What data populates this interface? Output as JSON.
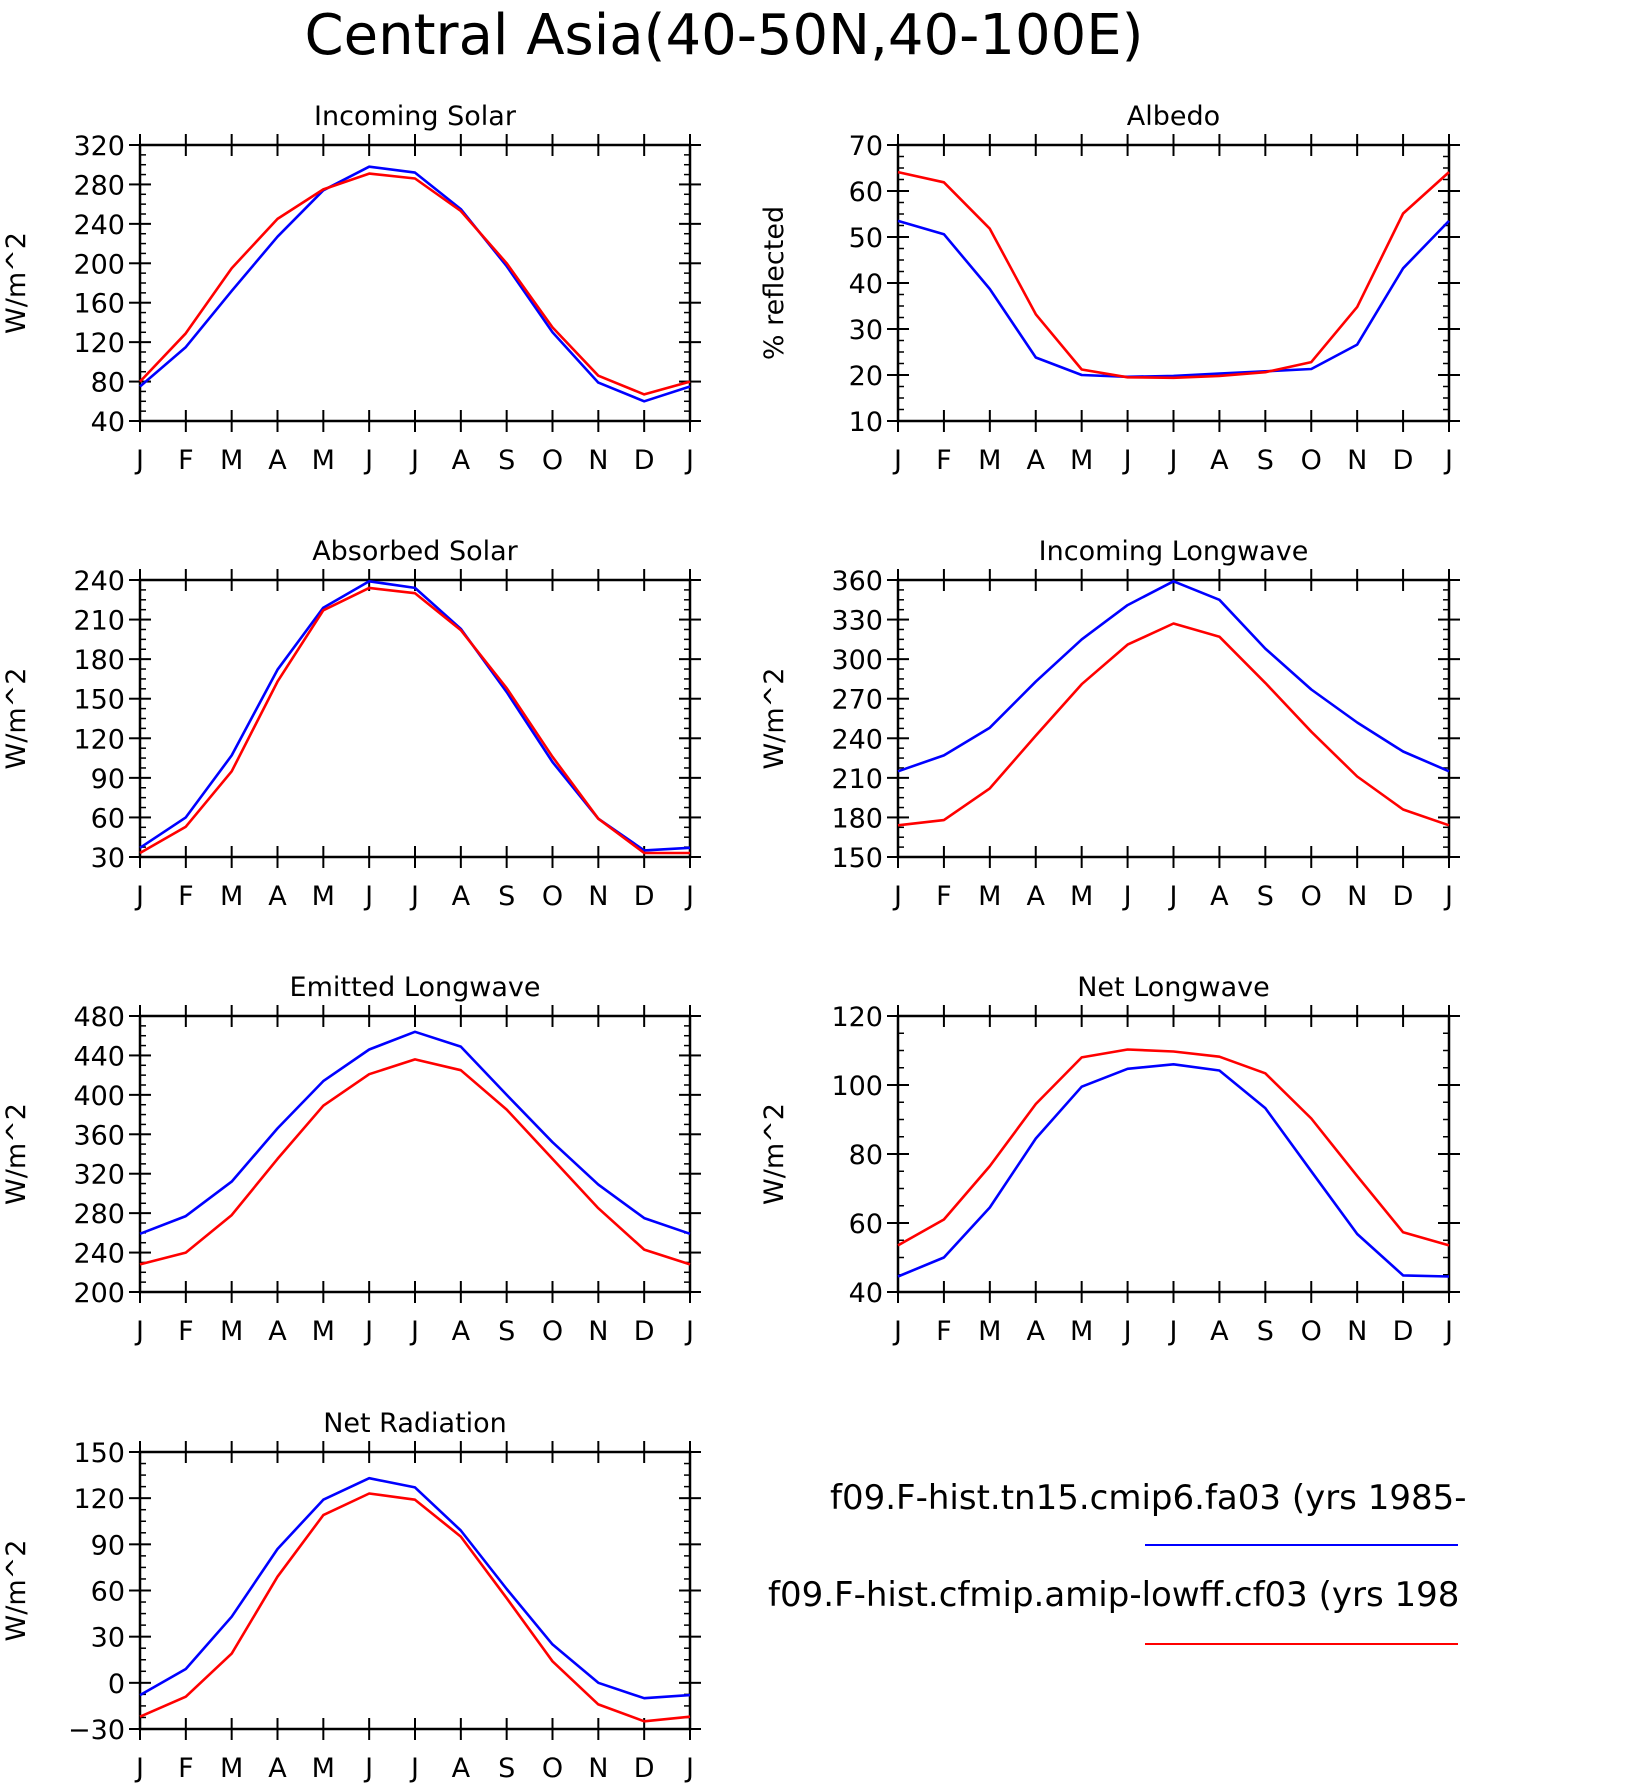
{
  "figure": {
    "title": "Central Asia(40-50N,40-100E)"
  },
  "legend": [
    {
      "label": "f09.F-hist.tn15.cmip6.fa03 (yrs 1985-",
      "color": "#0000ff"
    },
    {
      "label": "f09.F-hist.cfmip.amip-lowff.cf03 (yrs 198",
      "color": "#ff0000"
    }
  ],
  "chart_data": [
    {
      "type": "line",
      "title": "Incoming Solar",
      "ylabel": "W/m^2",
      "categories": [
        "J",
        "F",
        "M",
        "A",
        "M",
        "J",
        "J",
        "A",
        "S",
        "O",
        "N",
        "D",
        "J"
      ],
      "yticks": [
        40,
        80,
        120,
        160,
        200,
        240,
        280,
        320
      ],
      "ylim": [
        40,
        320
      ],
      "series": [
        {
          "color": "#0000ff",
          "values": [
            75,
            115,
            172,
            227,
            274,
            298,
            292,
            255,
            197,
            130,
            79,
            60,
            75
          ]
        },
        {
          "color": "#ff0000",
          "values": [
            80,
            129,
            195,
            245,
            275,
            291,
            286,
            253,
            200,
            135,
            86,
            67,
            80
          ]
        }
      ]
    },
    {
      "type": "line",
      "title": "Albedo",
      "ylabel": "% reflected",
      "categories": [
        "J",
        "F",
        "M",
        "A",
        "M",
        "J",
        "J",
        "A",
        "S",
        "O",
        "N",
        "D",
        "J"
      ],
      "yticks": [
        10,
        20,
        30,
        40,
        50,
        60,
        70
      ],
      "ylim": [
        10,
        70
      ],
      "series": [
        {
          "color": "#0000ff",
          "values": [
            53.5,
            50.6,
            38.7,
            23.8,
            20.0,
            19.6,
            19.8,
            20.3,
            20.8,
            21.3,
            26.6,
            43.2,
            53.5
          ]
        },
        {
          "color": "#ff0000",
          "values": [
            64.1,
            61.9,
            51.8,
            33.2,
            21.2,
            19.5,
            19.4,
            19.8,
            20.6,
            22.8,
            34.8,
            55.1,
            64.1
          ]
        }
      ]
    },
    {
      "type": "line",
      "title": "Absorbed Solar",
      "ylabel": "W/m^2",
      "categories": [
        "J",
        "F",
        "M",
        "A",
        "M",
        "J",
        "J",
        "A",
        "S",
        "O",
        "N",
        "D",
        "J"
      ],
      "yticks": [
        30,
        60,
        90,
        120,
        150,
        180,
        210,
        240
      ],
      "ylim": [
        30,
        240
      ],
      "series": [
        {
          "color": "#0000ff",
          "values": [
            37,
            60,
            107,
            172,
            219,
            239,
            234,
            203,
            155,
            102,
            59,
            35,
            37
          ]
        },
        {
          "color": "#ff0000",
          "values": [
            33,
            53,
            95,
            163,
            217,
            234,
            230,
            202,
            158,
            106,
            59,
            33,
            33
          ]
        }
      ]
    },
    {
      "type": "line",
      "title": "Incoming Longwave",
      "ylabel": "W/m^2",
      "categories": [
        "J",
        "F",
        "M",
        "A",
        "M",
        "J",
        "J",
        "A",
        "S",
        "O",
        "N",
        "D",
        "J"
      ],
      "yticks": [
        150,
        180,
        210,
        240,
        270,
        300,
        330,
        360
      ],
      "ylim": [
        150,
        360
      ],
      "series": [
        {
          "color": "#0000ff",
          "values": [
            215,
            227,
            248,
            283,
            315,
            341,
            359,
            345,
            308,
            277,
            252,
            230,
            215
          ]
        },
        {
          "color": "#ff0000",
          "values": [
            174,
            178,
            202,
            242,
            281,
            311,
            327,
            317,
            282,
            245,
            211,
            186,
            174
          ]
        }
      ]
    },
    {
      "type": "line",
      "title": "Emitted Longwave",
      "ylabel": "W/m^2",
      "categories": [
        "J",
        "F",
        "M",
        "A",
        "M",
        "J",
        "J",
        "A",
        "S",
        "O",
        "N",
        "D",
        "J"
      ],
      "yticks": [
        200,
        240,
        280,
        320,
        360,
        400,
        440,
        480
      ],
      "ylim": [
        200,
        480
      ],
      "series": [
        {
          "color": "#0000ff",
          "values": [
            259,
            277,
            312,
            366,
            414,
            446,
            464,
            449,
            400,
            352,
            309,
            275,
            259
          ]
        },
        {
          "color": "#ff0000",
          "values": [
            228,
            240,
            278,
            335,
            389,
            421,
            436,
            425,
            385,
            335,
            285,
            243,
            228
          ]
        }
      ]
    },
    {
      "type": "line",
      "title": "Net Longwave",
      "ylabel": "W/m^2",
      "categories": [
        "J",
        "F",
        "M",
        "A",
        "M",
        "J",
        "J",
        "A",
        "S",
        "O",
        "N",
        "D",
        "J"
      ],
      "yticks": [
        40,
        60,
        80,
        100,
        120
      ],
      "ylim": [
        40,
        120
      ],
      "series": [
        {
          "color": "#0000ff",
          "values": [
            44.5,
            50.0,
            64.5,
            84.5,
            99.5,
            104.7,
            106.0,
            104.2,
            93.3,
            75.0,
            56.8,
            44.8,
            44.5
          ]
        },
        {
          "color": "#ff0000",
          "values": [
            53.5,
            61.0,
            76.5,
            94.5,
            108.0,
            110.3,
            109.7,
            108.2,
            103.4,
            90.3,
            73.6,
            57.3,
            53.5
          ]
        }
      ]
    },
    {
      "type": "line",
      "title": "Net Radiation",
      "ylabel": "W/m^2",
      "categories": [
        "J",
        "F",
        "M",
        "A",
        "M",
        "J",
        "J",
        "A",
        "S",
        "O",
        "N",
        "D",
        "J"
      ],
      "yticks": [
        -30,
        0,
        30,
        60,
        90,
        120,
        150
      ],
      "ylim": [
        -30,
        150
      ],
      "series": [
        {
          "color": "#0000ff",
          "values": [
            -8,
            9,
            43,
            87,
            119,
            133,
            127,
            99,
            61,
            25,
            0,
            -10,
            -8
          ]
        },
        {
          "color": "#ff0000",
          "values": [
            -22,
            -9,
            19,
            69,
            109,
            123,
            119,
            95,
            55,
            14,
            -14,
            -25,
            -22
          ]
        }
      ]
    }
  ]
}
